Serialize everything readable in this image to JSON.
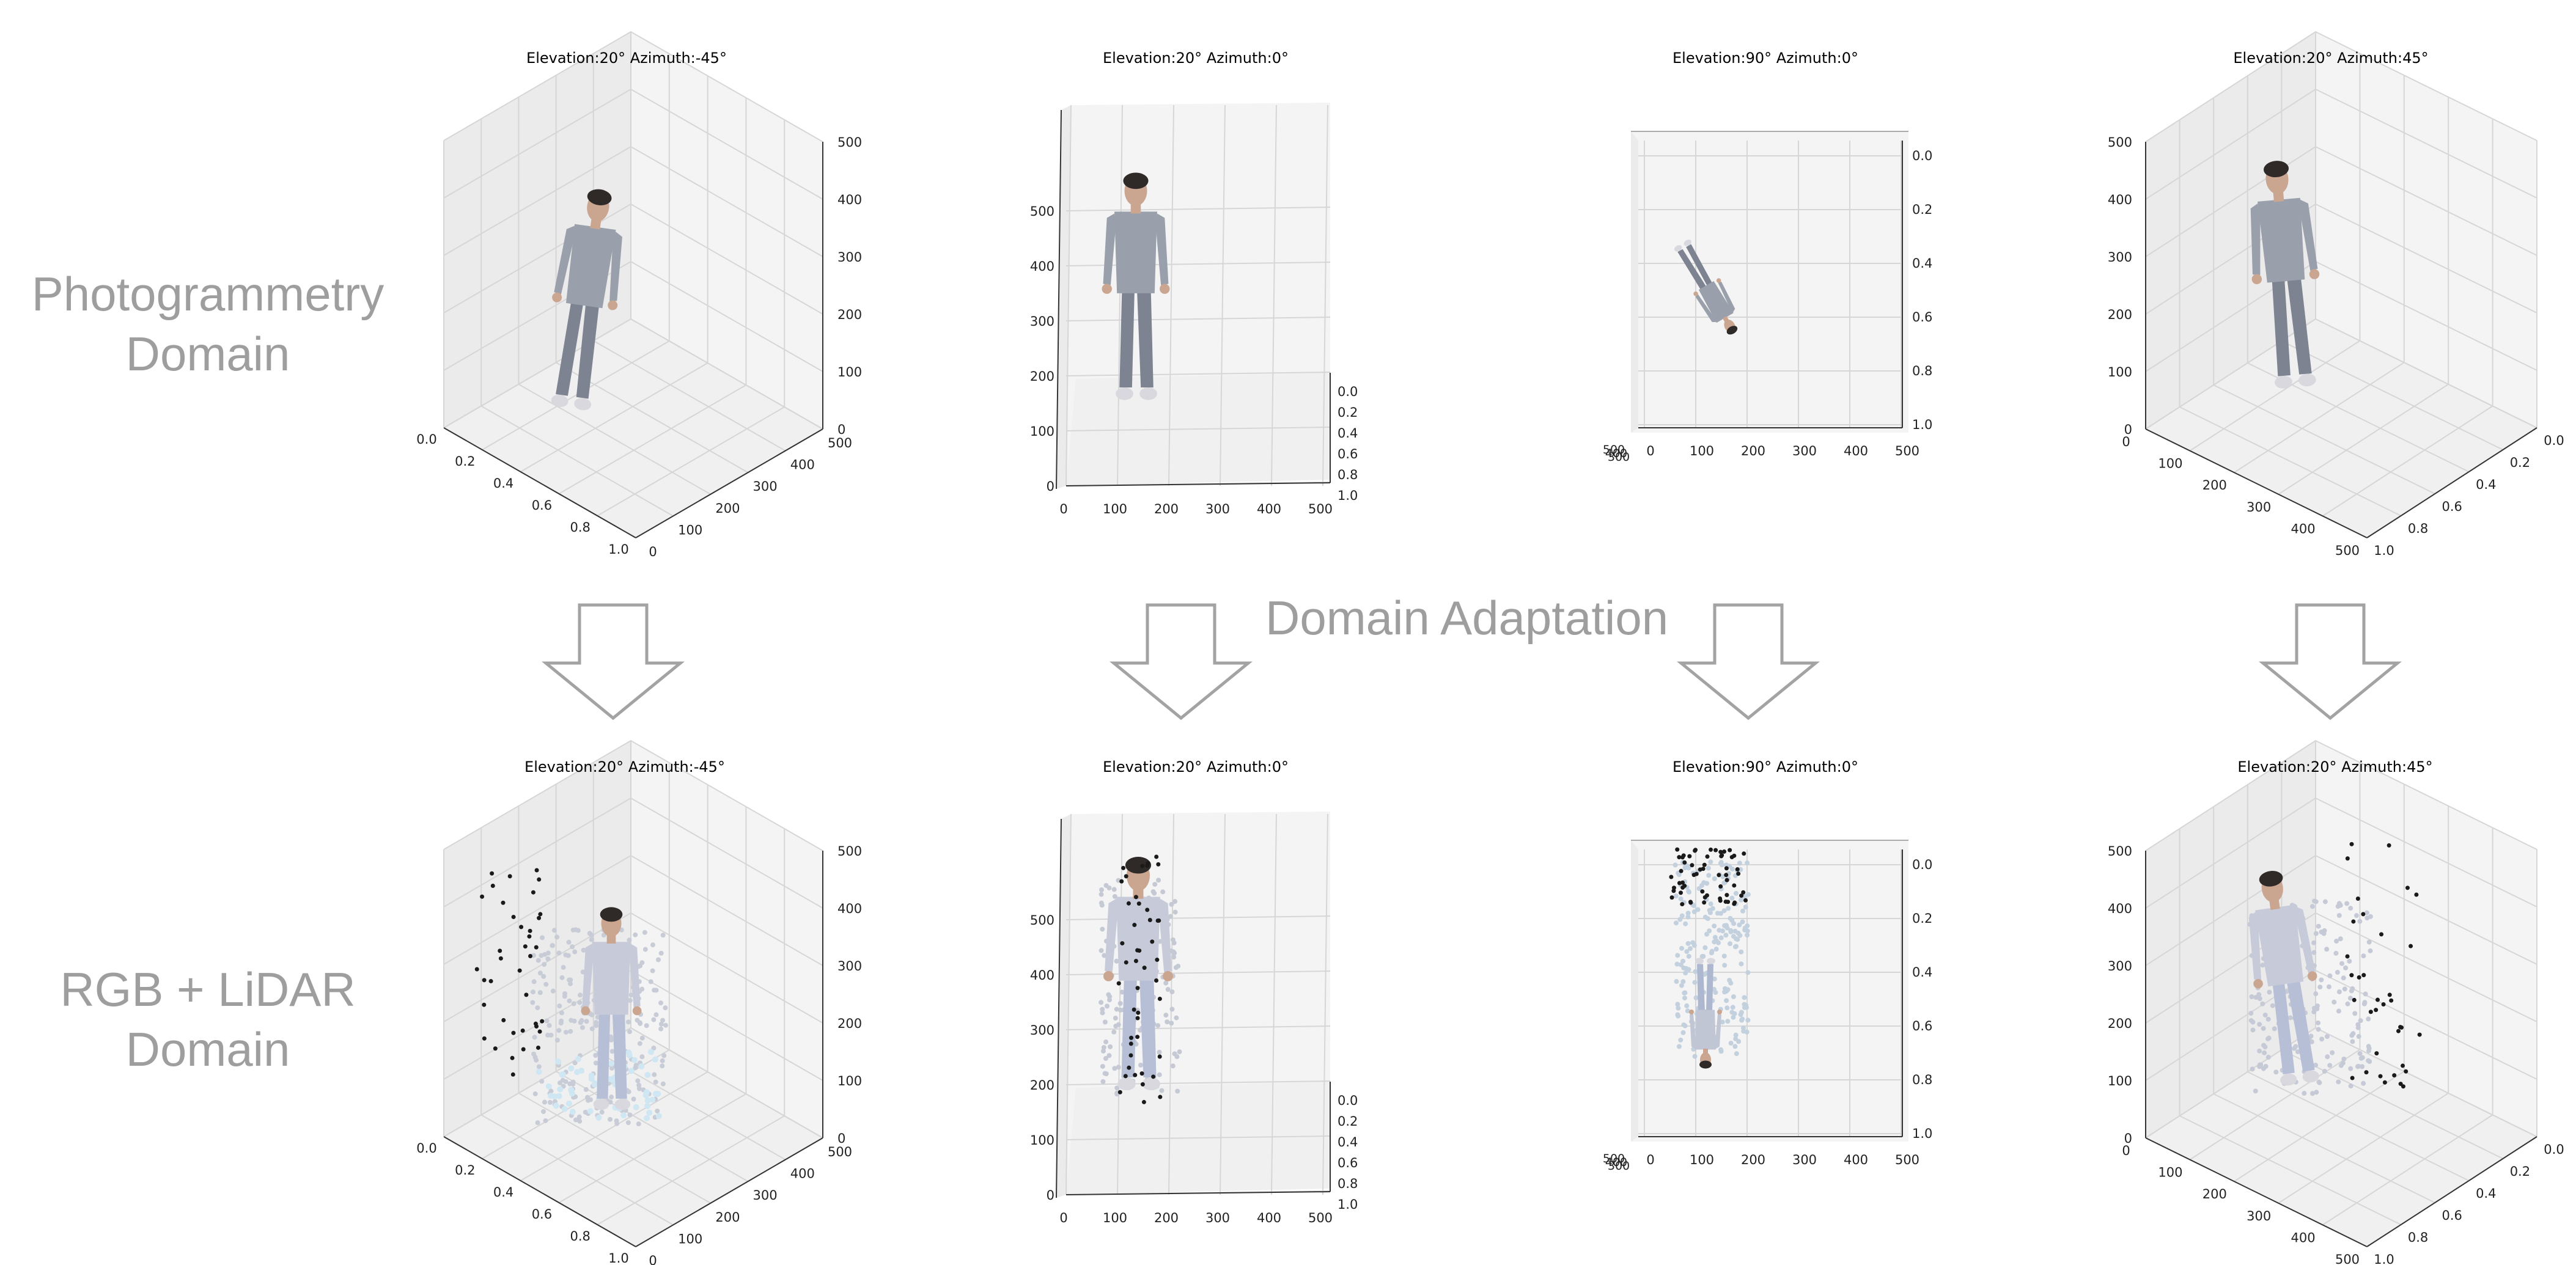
{
  "domains": {
    "top": [
      "Photogrammetry",
      "Domain"
    ],
    "bottom": [
      "RGB + LiDAR",
      "Domain"
    ]
  },
  "center_label": "Domain Adaptation",
  "colors": {
    "label": "#9e9e9e",
    "arrow": "#a3a3a3",
    "pane_left": "#ebebeb",
    "pane_right": "#f4f4f4",
    "pane_floor": "#f0f0f0",
    "grid": "#d6d6d6",
    "body_shirt": "#9aa0ab",
    "body_pants": "#7d8390",
    "hair": "#2f2a28",
    "skin": "#caa590",
    "lidar_points": "#1a1a1a",
    "lidar_body": "#b8c4da"
  },
  "views": [
    {
      "title": "Elevation:20° Azimuth:-45°",
      "kind": "az_neg45",
      "x_ticks": [
        "0.0",
        "0.2",
        "0.4",
        "0.6",
        "0.8",
        "1.0"
      ],
      "y_ticks": [
        "0",
        "100",
        "200",
        "300",
        "400",
        "500"
      ],
      "z_ticks": [
        "0",
        "100",
        "200",
        "300",
        "400",
        "500"
      ]
    },
    {
      "title": "Elevation:20° Azimuth:0°",
      "kind": "az_0",
      "x_ticks": [
        "0",
        "100",
        "200",
        "300",
        "400",
        "500"
      ],
      "y_ticks": [
        "0.0",
        "0.2",
        "0.4",
        "0.6",
        "0.8",
        "1.0"
      ],
      "z_ticks": [
        "0",
        "100",
        "200",
        "300",
        "400",
        "500"
      ]
    },
    {
      "title": "Elevation:90° Azimuth:0°",
      "kind": "top",
      "x_ticks": [
        "0",
        "100",
        "200",
        "300",
        "400",
        "500"
      ],
      "y_ticks": [
        "0.0",
        "0.2",
        "0.4",
        "0.6",
        "0.8",
        "1.0"
      ],
      "z_ticks": [
        "0",
        "100",
        "200",
        "300",
        "400",
        "500"
      ]
    },
    {
      "title": "Elevation:20° Azimuth:45°",
      "kind": "az_45",
      "x_ticks": [
        "1.0",
        "0.8",
        "0.6",
        "0.4",
        "0.2",
        "0.0"
      ],
      "y_ticks": [
        "0",
        "100",
        "200",
        "300",
        "400",
        "500"
      ],
      "z_ticks": [
        "0",
        "100",
        "200",
        "300",
        "400",
        "500"
      ]
    }
  ]
}
